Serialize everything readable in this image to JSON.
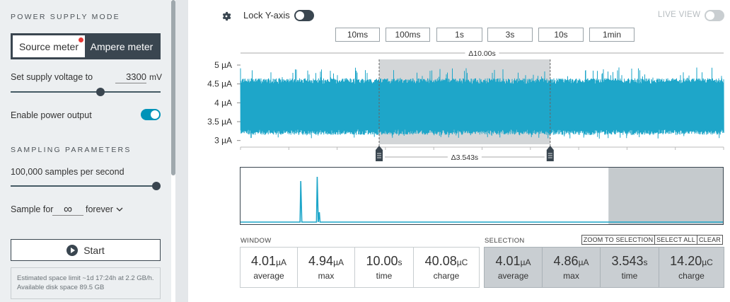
{
  "sidebar": {
    "power_supply_title": "POWER SUPPLY MODE",
    "mode_source": "Source meter",
    "mode_ampere": "Ampere meter",
    "voltage_label": "Set supply voltage to",
    "voltage_value": "3300",
    "voltage_unit": "mV",
    "voltage_slider_fraction": 0.6,
    "enable_power_label": "Enable power output",
    "power_enabled": true,
    "sampling_title": "SAMPLING PARAMETERS",
    "samples_label": "100,000 samples per second",
    "samples_slider_fraction": 1.0,
    "sample_for_label": "Sample for",
    "sample_for_value": "∞",
    "sample_for_unit": "forever",
    "start_label": "Start",
    "space_info": "Estimated space limit ~1d 17:24h at 2.2 GB/h. Available disk space 89.5 GB"
  },
  "header": {
    "lock_label": "Lock Y-axis",
    "live_label": "LIVE VIEW",
    "zoom_buttons": [
      "10ms",
      "100ms",
      "1s",
      "3s",
      "10s",
      "1min"
    ]
  },
  "chart_data": {
    "type": "line",
    "y_tick_labels": [
      "5 µA",
      "4.5 µA",
      "4 µA",
      "3.5 µA",
      "3 µA"
    ],
    "ylim": [
      2.9,
      5.15
    ],
    "band_low": 3.25,
    "band_high": 4.6,
    "band_peak_high": 4.94,
    "band_peak_low": 3.05,
    "window_delta": "Δ10.00s",
    "selection_delta": "Δ3.543s",
    "selection_start_fraction": 0.287,
    "selection_end_fraction": 0.641,
    "minimap_spikes": [
      0.126,
      0.16
    ],
    "minimap_view_end_fraction": 0.762
  },
  "window_stats": {
    "title": "WINDOW",
    "items": [
      {
        "value": "4.01",
        "unit": "µA",
        "name": "average"
      },
      {
        "value": "4.94",
        "unit": "µA",
        "name": "max"
      },
      {
        "value": "10.00",
        "unit": "s",
        "name": "time"
      },
      {
        "value": "40.08",
        "unit": "µC",
        "name": "charge"
      }
    ]
  },
  "selection_stats": {
    "title": "SELECTION",
    "zoom_to_selection": "ZOOM TO SELECTION",
    "select_all": "SELECT ALL",
    "clear": "CLEAR",
    "items": [
      {
        "value": "4.01",
        "unit": "µA",
        "name": "average"
      },
      {
        "value": "4.86",
        "unit": "µA",
        "name": "max"
      },
      {
        "value": "3.543",
        "unit": "s",
        "name": "time"
      },
      {
        "value": "14.20",
        "unit": "µC",
        "name": "charge"
      }
    ]
  },
  "colors": {
    "trace": "#1ea6c9",
    "selection": "#d3d6d8",
    "accent": "#0093b8",
    "dark": "#3a4650"
  }
}
